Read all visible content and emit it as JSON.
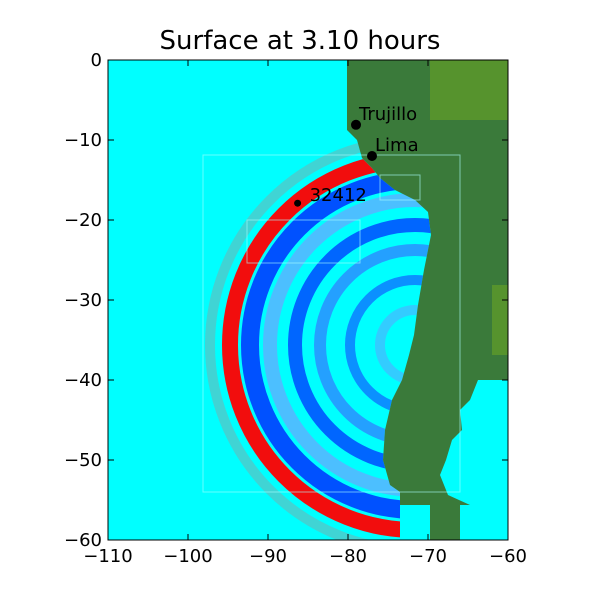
{
  "title": "Surface at 3.10 hours",
  "colors": {
    "ocean": "#00ffff",
    "land": "#3a7a3a",
    "land_high": "#5e9a2a",
    "positive": "#ff0000",
    "negative": "#0033ff",
    "frame": "#000000"
  },
  "axes": {
    "x_ticks": [
      {
        "value": -110,
        "label": "−110"
      },
      {
        "value": -100,
        "label": "−100"
      },
      {
        "value": -90,
        "label": "−90"
      },
      {
        "value": -80,
        "label": "−80"
      },
      {
        "value": -70,
        "label": "−70"
      },
      {
        "value": -60,
        "label": "−60"
      }
    ],
    "y_ticks": [
      {
        "value": 0,
        "label": "0"
      },
      {
        "value": -10,
        "label": "−10"
      },
      {
        "value": -20,
        "label": "−20"
      },
      {
        "value": -30,
        "label": "−30"
      },
      {
        "value": -40,
        "label": "−40"
      },
      {
        "value": -50,
        "label": "−50"
      },
      {
        "value": -60,
        "label": "−60"
      }
    ]
  },
  "places": [
    {
      "name": "Trujillo",
      "lon": -79.0,
      "lat": -8.1
    },
    {
      "name": "Lima",
      "lon": -77.0,
      "lat": -12.0
    },
    {
      "name": "32412",
      "lon": -86.3,
      "lat": -17.9
    }
  ]
}
